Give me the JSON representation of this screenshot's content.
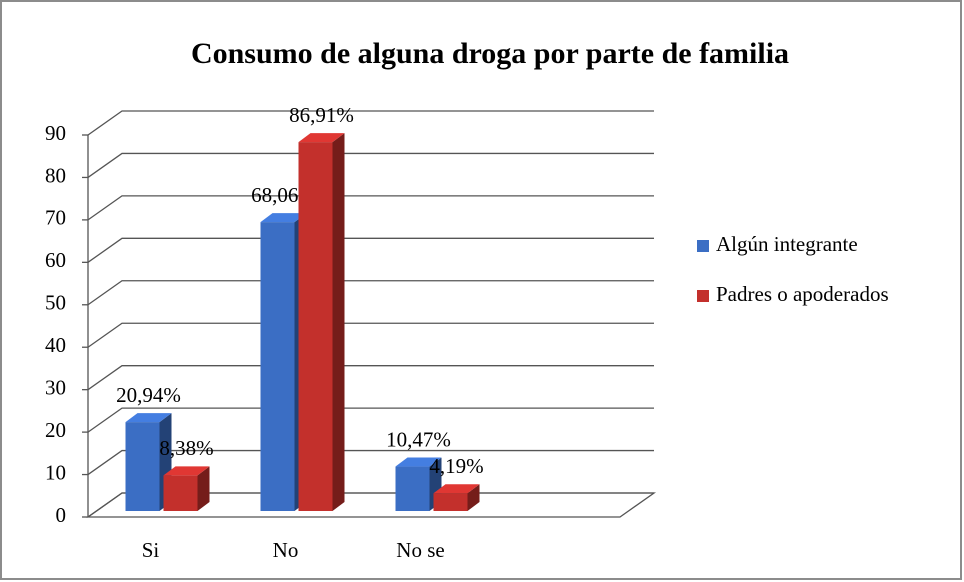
{
  "chart_data": {
    "type": "bar3d",
    "title": "Consumo de alguna droga por parte de familia",
    "categories": [
      "Si",
      "No",
      "No se"
    ],
    "series": [
      {
        "name": "Algún integrante",
        "color": "#3b6ec4",
        "values": [
          20.94,
          68.06,
          10.47
        ],
        "value_labels": [
          "20,94%",
          "68,06%",
          "10,47%"
        ]
      },
      {
        "name": "Padres o apoderados",
        "color": "#c3302c",
        "values": [
          8.38,
          86.91,
          4.19
        ],
        "value_labels": [
          "8,38%",
          "86,91%",
          "4,19%"
        ]
      }
    ],
    "ylim": [
      0,
      90
    ],
    "yticks": [
      0,
      10,
      20,
      30,
      40,
      50,
      60,
      70,
      80,
      90
    ],
    "grid": true,
    "legend": "right"
  }
}
